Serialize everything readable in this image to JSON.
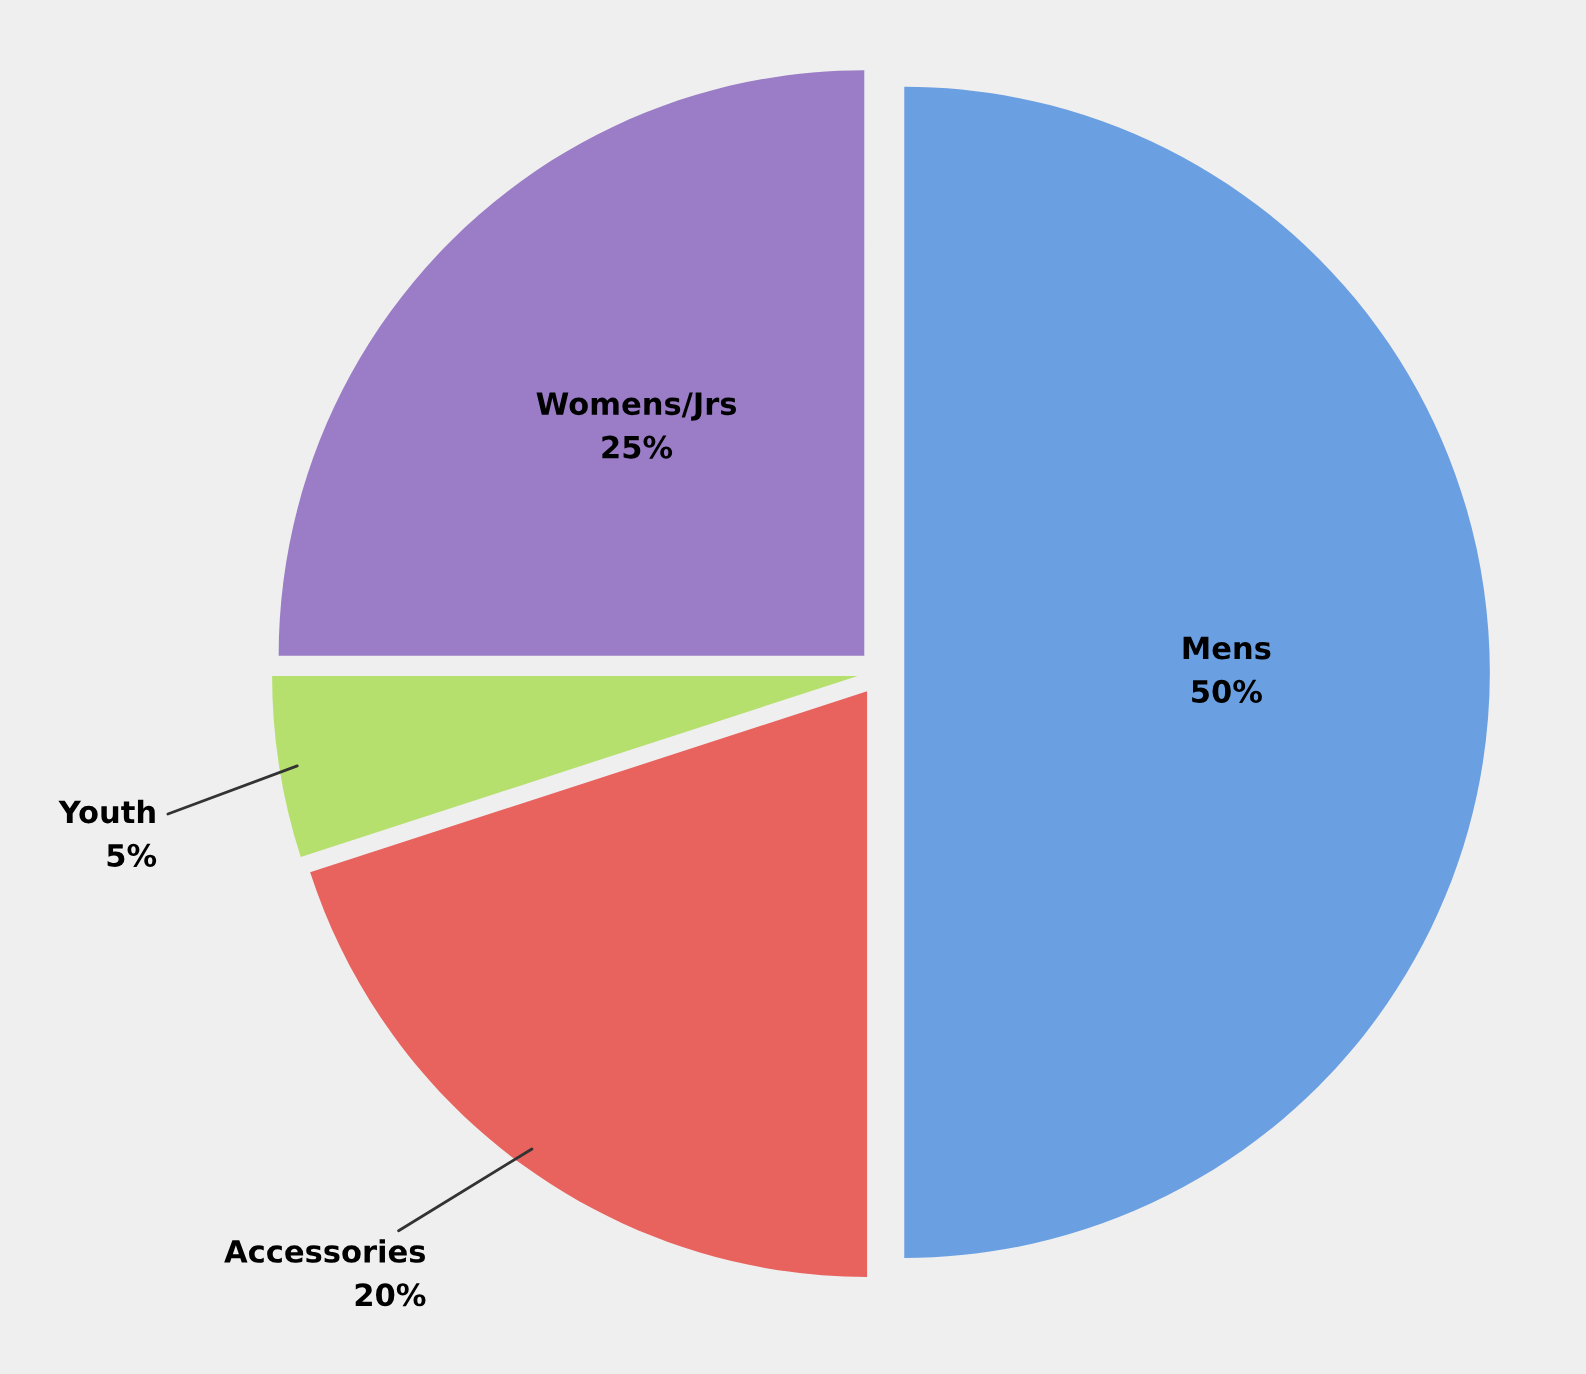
{
  "chart_data": {
    "type": "pie",
    "categories": [
      "Mens",
      "Accessories",
      "Youth",
      "Womens/Jrs"
    ],
    "values": [
      50,
      20,
      5,
      25
    ],
    "colors": [
      "#6a9fe2",
      "#e8625e",
      "#b6e06e",
      "#9a7dc6"
    ],
    "value_labels": [
      "50%",
      "20%",
      "5%",
      "25%"
    ],
    "legend": false
  }
}
